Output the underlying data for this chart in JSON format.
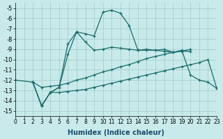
{
  "xlabel": "Humidex (Indice chaleur)",
  "background_color": "#c8eaea",
  "grid_color": "#a0c8c8",
  "line_color": "#1a6b6b",
  "xlim": [
    0,
    23
  ],
  "ylim": [
    -15.5,
    -4.5
  ],
  "yticks": [
    -15,
    -14,
    -13,
    -12,
    -11,
    -10,
    -9,
    -8,
    -7,
    -6,
    -5
  ],
  "xticks": [
    0,
    1,
    2,
    3,
    4,
    5,
    6,
    7,
    8,
    9,
    10,
    11,
    12,
    13,
    14,
    15,
    16,
    17,
    18,
    19,
    20,
    21,
    22,
    23
  ],
  "curves": [
    {
      "x": [
        2,
        3,
        4,
        5,
        6,
        7,
        8,
        9,
        10,
        11,
        12,
        13,
        14,
        15,
        16,
        17,
        18,
        19,
        20
      ],
      "y": [
        -12.2,
        -14.5,
        -13.2,
        -12.7,
        -8.5,
        -7.3,
        -7.5,
        -7.7,
        -5.4,
        -5.2,
        -5.5,
        -6.7,
        -9.1,
        -9.1,
        -9.1,
        -9.0,
        -9.3,
        -9.2,
        -9.2
      ]
    },
    {
      "x": [
        2,
        3,
        4,
        5,
        6,
        7,
        8,
        9,
        10,
        11,
        12,
        13,
        14,
        15,
        16,
        17,
        18,
        19,
        20
      ],
      "y": [
        -12.2,
        -14.5,
        -13.2,
        -12.7,
        -9.5,
        -7.3,
        -8.3,
        -9.1,
        -9.0,
        -8.8,
        -8.9,
        -9.0,
        -9.1,
        -9.0,
        -9.1,
        -9.2,
        -9.3,
        -9.2,
        -9.0
      ]
    },
    {
      "x": [
        0,
        2,
        3,
        4,
        5,
        6,
        7,
        8,
        9,
        10,
        11,
        12,
        13,
        14,
        15,
        16,
        17,
        18,
        19,
        20,
        21,
        22,
        23
      ],
      "y": [
        -12,
        -12.2,
        -12.7,
        -12.6,
        -12.5,
        -12.3,
        -12.0,
        -11.8,
        -11.5,
        -11.2,
        -11.0,
        -10.7,
        -10.5,
        -10.2,
        -9.9,
        -9.7,
        -9.5,
        -9.3,
        -9.1,
        -11.5,
        -12.0,
        -12.2,
        -12.8
      ]
    },
    {
      "x": [
        2,
        3,
        4,
        5,
        6,
        7,
        8,
        9,
        10,
        11,
        12,
        13,
        14,
        15,
        16,
        17,
        18,
        19,
        20,
        21,
        22,
        23
      ],
      "y": [
        -12.2,
        -14.5,
        -13.2,
        -13.2,
        -13.1,
        -13.0,
        -12.9,
        -12.7,
        -12.5,
        -12.3,
        -12.1,
        -11.9,
        -11.7,
        -11.5,
        -11.3,
        -11.1,
        -10.9,
        -10.7,
        -10.5,
        -10.3,
        -10.0,
        -12.8
      ]
    }
  ]
}
